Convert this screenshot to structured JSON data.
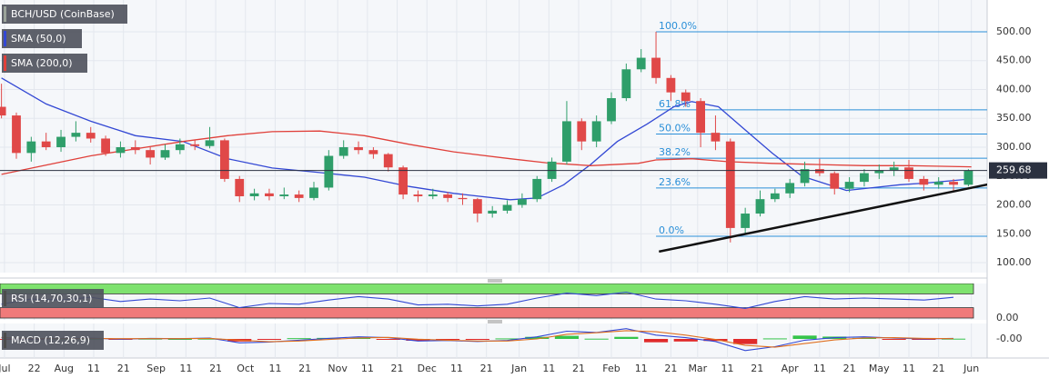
{
  "chart_data": {
    "type": "candlestick",
    "title": "BCH/USD (CoinBase)",
    "up_color": "#2f9e6a",
    "down_color": "#e04848",
    "x": [
      10,
      15,
      20,
      25,
      30,
      35,
      40,
      45,
      50,
      55,
      60,
      65,
      70,
      75,
      80,
      85,
      90,
      95,
      100,
      105,
      110,
      115,
      120,
      125,
      130,
      135,
      140,
      145,
      150,
      155,
      160,
      165,
      170,
      175,
      180,
      185,
      190,
      195,
      200,
      205,
      210,
      215,
      220,
      225,
      230,
      235,
      240,
      245,
      250,
      255,
      260,
      265,
      270,
      275,
      280,
      285,
      290,
      295,
      300,
      305,
      310,
      315,
      320,
      325,
      330,
      335
    ],
    "open": [
      370,
      355,
      290,
      310,
      300,
      318,
      325,
      315,
      290,
      300,
      295,
      282,
      295,
      305,
      302,
      312,
      245,
      215,
      220,
      215,
      218,
      212,
      230,
      285,
      300,
      295,
      288,
      265,
      218,
      215,
      218,
      212,
      210,
      185,
      190,
      200,
      210,
      245,
      275,
      345,
      310,
      345,
      385,
      435,
      455,
      420,
      395,
      380,
      325,
      310,
      160,
      185,
      210,
      220,
      238,
      262,
      255,
      228,
      240,
      255,
      260,
      265,
      245,
      235,
      240,
      235
    ],
    "high": [
      410,
      360,
      318,
      325,
      330,
      345,
      335,
      320,
      310,
      312,
      300,
      305,
      315,
      312,
      335,
      315,
      250,
      228,
      228,
      230,
      225,
      240,
      295,
      312,
      310,
      300,
      290,
      268,
      225,
      228,
      222,
      220,
      212,
      198,
      208,
      220,
      250,
      282,
      380,
      350,
      355,
      395,
      445,
      470,
      500,
      425,
      400,
      385,
      355,
      315,
      195,
      225,
      228,
      245,
      275,
      280,
      258,
      248,
      262,
      270,
      275,
      278,
      250,
      248,
      245,
      262
    ],
    "low": [
      350,
      280,
      275,
      295,
      292,
      310,
      308,
      285,
      282,
      288,
      270,
      278,
      288,
      295,
      298,
      240,
      205,
      208,
      208,
      210,
      205,
      208,
      225,
      280,
      288,
      280,
      258,
      210,
      205,
      210,
      205,
      200,
      170,
      178,
      185,
      195,
      205,
      240,
      270,
      295,
      300,
      340,
      380,
      430,
      410,
      380,
      370,
      300,
      295,
      135,
      150,
      180,
      205,
      212,
      232,
      250,
      218,
      222,
      232,
      245,
      250,
      240,
      225,
      228,
      225,
      232
    ],
    "close": [
      355,
      290,
      310,
      300,
      318,
      325,
      315,
      290,
      300,
      295,
      282,
      295,
      305,
      302,
      312,
      245,
      215,
      220,
      215,
      218,
      212,
      230,
      285,
      300,
      295,
      288,
      265,
      218,
      215,
      218,
      212,
      210,
      185,
      190,
      200,
      210,
      245,
      275,
      345,
      310,
      345,
      385,
      435,
      455,
      420,
      395,
      380,
      325,
      310,
      160,
      185,
      210,
      220,
      238,
      262,
      255,
      228,
      240,
      255,
      260,
      265,
      245,
      235,
      240,
      235,
      259.68
    ],
    "xlim": [
      9.5,
      341.3
    ],
    "xticks": [
      {
        "value": 11,
        "label": "Jul"
      },
      {
        "value": 21,
        "label": "22"
      },
      {
        "value": 31,
        "label": "Aug"
      },
      {
        "value": 41,
        "label": "11"
      },
      {
        "value": 51,
        "label": "21"
      },
      {
        "value": 62,
        "label": "Sep"
      },
      {
        "value": 72,
        "label": "11"
      },
      {
        "value": 82,
        "label": "21"
      },
      {
        "value": 92,
        "label": "Oct"
      },
      {
        "value": 102,
        "label": "11"
      },
      {
        "value": 112,
        "label": "21"
      },
      {
        "value": 123,
        "label": "Nov"
      },
      {
        "value": 133,
        "label": "11"
      },
      {
        "value": 143,
        "label": "21"
      },
      {
        "value": 153,
        "label": "Dec"
      },
      {
        "value": 163,
        "label": "11"
      },
      {
        "value": 173,
        "label": "21"
      },
      {
        "value": 184,
        "label": "Jan"
      },
      {
        "value": 194,
        "label": "11"
      },
      {
        "value": 204,
        "label": "21"
      },
      {
        "value": 215,
        "label": "Feb"
      },
      {
        "value": 225,
        "label": "11"
      },
      {
        "value": 235,
        "label": "21"
      },
      {
        "value": 244,
        "label": "Mar"
      },
      {
        "value": 254,
        "label": "11"
      },
      {
        "value": 264,
        "label": "21"
      },
      {
        "value": 275,
        "label": "Apr"
      },
      {
        "value": 285,
        "label": "11"
      },
      {
        "value": 295,
        "label": "21"
      },
      {
        "value": 305,
        "label": "May"
      },
      {
        "value": 315,
        "label": "11"
      },
      {
        "value": 325,
        "label": "21"
      },
      {
        "value": 336,
        "label": "Jun"
      }
    ],
    "ylim": [
      82.7,
      555.1
    ],
    "yticks": [
      {
        "value": 100,
        "label": "100.00"
      },
      {
        "value": 150,
        "label": "150.00"
      },
      {
        "value": 200,
        "label": "200.00"
      },
      {
        "value": 250,
        "label": "250.00"
      },
      {
        "value": 300,
        "label": "300.00"
      },
      {
        "value": 350,
        "label": "350.00"
      },
      {
        "value": 400,
        "label": "400.00"
      },
      {
        "value": 450,
        "label": "450.00"
      },
      {
        "value": 500,
        "label": "500.00"
      }
    ],
    "grid": true,
    "series": [
      {
        "name": "SMA (50,0)",
        "color": "#3348d4",
        "x": [
          10,
          25,
          40,
          55,
          71,
          86,
          101,
          117,
          132,
          147,
          162,
          181,
          190,
          199,
          208,
          217,
          227,
          236,
          242,
          251,
          260,
          269,
          279,
          285,
          294,
          303,
          312,
          321,
          336
        ],
        "values": [
          420,
          375,
          345,
          320,
          310,
          280,
          264,
          256,
          248,
          232,
          220,
          209,
          212,
          235,
          270,
          310,
          340,
          370,
          379,
          370,
          330,
          290,
          250,
          240,
          225,
          230,
          235,
          238,
          245
        ]
      },
      {
        "name": "SMA (200,0)",
        "color": "#e0403a",
        "x": [
          10,
          40,
          71,
          86,
          101,
          117,
          132,
          147,
          162,
          181,
          193,
          208,
          224,
          230,
          242,
          254,
          269,
          285,
          300,
          315,
          336
        ],
        "values": [
          253,
          285,
          310,
          320,
          327,
          328,
          320,
          305,
          292,
          280,
          273,
          268,
          272,
          278,
          280,
          275,
          272,
          270,
          268,
          268,
          266
        ]
      }
    ],
    "fibonacci": [
      {
        "value": 500,
        "label": "100.0%"
      },
      {
        "value": 364.7,
        "label": "61.8%"
      },
      {
        "value": 322.9,
        "label": "50.0%"
      },
      {
        "value": 281,
        "label": "38.2%"
      },
      {
        "value": 229.3,
        "label": "23.6%"
      },
      {
        "value": 145.7,
        "label": "0.0%"
      }
    ],
    "fib_color": "#2a8fd8",
    "trendline": {
      "x": [
        231,
        343
      ],
      "values": [
        119,
        237
      ],
      "color": "#111111"
    },
    "indicators": [
      {
        "type": "rsi",
        "title": "RSI (14,70,30,1)",
        "color": "#3348d4",
        "upper": 70,
        "lower": 30,
        "ylim": [
          0,
          100
        ],
        "yticks": [
          {
            "value": 0,
            "label": "0.00"
          }
        ],
        "x": [
          10,
          20,
          30,
          40,
          50,
          60,
          70,
          80,
          90,
          100,
          110,
          120,
          130,
          140,
          150,
          160,
          170,
          180,
          190,
          200,
          210,
          220,
          230,
          240,
          250,
          260,
          270,
          280,
          290,
          300,
          310,
          320,
          330
        ],
        "values": [
          40,
          55,
          52,
          60,
          48,
          55,
          50,
          58,
          30,
          42,
          40,
          52,
          62,
          55,
          38,
          40,
          35,
          40,
          58,
          72,
          65,
          75,
          55,
          50,
          40,
          28,
          48,
          62,
          55,
          58,
          55,
          52,
          60
        ]
      },
      {
        "type": "macd",
        "title": "MACD (12,26,9)",
        "macd_color": "#3348d4",
        "signal_color": "#e07020",
        "ylim": [
          -60,
          60
        ],
        "yticks": [
          {
            "value": 0,
            "label": "-0.00"
          }
        ],
        "x": [
          10,
          20,
          30,
          40,
          50,
          60,
          70,
          80,
          90,
          100,
          110,
          120,
          130,
          140,
          150,
          160,
          170,
          180,
          190,
          200,
          210,
          220,
          230,
          240,
          250,
          260,
          270,
          280,
          290,
          300,
          310,
          320,
          330
        ],
        "macd": [
          5,
          -2,
          2,
          3,
          -1,
          2,
          1,
          3,
          -15,
          -12,
          -5,
          2,
          8,
          5,
          -8,
          -6,
          -10,
          -6,
          8,
          30,
          25,
          40,
          15,
          5,
          -10,
          -45,
          -30,
          -5,
          5,
          8,
          3,
          0,
          2
        ],
        "signal": [
          6,
          1,
          1,
          2,
          1,
          1,
          1,
          2,
          -5,
          -11,
          -8,
          -2,
          4,
          6,
          -1,
          -5,
          -8,
          -8,
          0,
          18,
          24,
          32,
          28,
          15,
          -2,
          -25,
          -32,
          -18,
          -4,
          4,
          5,
          2,
          1
        ],
        "histogram": [
          -1,
          -3,
          1,
          1,
          -2,
          1,
          0,
          1,
          -10,
          -1,
          3,
          4,
          4,
          -1,
          -7,
          -1,
          -2,
          2,
          8,
          12,
          1,
          8,
          -13,
          -10,
          -8,
          -20,
          2,
          13,
          9,
          4,
          -2,
          -2,
          1
        ]
      }
    ]
  }
}
